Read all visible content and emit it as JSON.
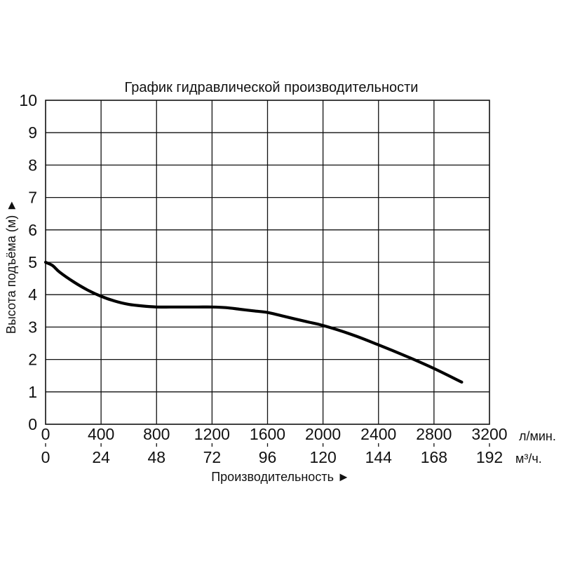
{
  "chart_data": {
    "type": "line",
    "title": "График гидравлической производительности",
    "ylabel": "Высота подъёма (м) ►",
    "xlabel": "Производительность ►",
    "x_unit": "л/мин.",
    "x2_unit": "м³/ч.",
    "xlim": [
      0,
      3200
    ],
    "ylim": [
      0,
      10
    ],
    "grid": true,
    "x_ticks": [
      "0",
      "400",
      "800",
      "1200",
      "1600",
      "2000",
      "2400",
      "2800",
      "3200"
    ],
    "x2_ticks": [
      "0",
      "24",
      "48",
      "72",
      "96",
      "120",
      "144",
      "168",
      "192"
    ],
    "y_ticks": [
      "0",
      "1",
      "2",
      "3",
      "4",
      "5",
      "6",
      "7",
      "8",
      "9",
      "10"
    ],
    "series": [
      {
        "x": [
          0,
          50,
          100,
          200,
          300,
          400,
          500,
          600,
          700,
          800,
          900,
          1000,
          1100,
          1200,
          1300,
          1400,
          1500,
          1600,
          1700,
          1800,
          1900,
          2000,
          2200,
          2400,
          2600,
          2800,
          3000
        ],
        "values": [
          5.0,
          4.9,
          4.7,
          4.4,
          4.15,
          3.95,
          3.8,
          3.7,
          3.65,
          3.62,
          3.62,
          3.62,
          3.62,
          3.62,
          3.6,
          3.55,
          3.5,
          3.45,
          3.35,
          3.25,
          3.15,
          3.05,
          2.78,
          2.45,
          2.1,
          1.72,
          1.3
        ]
      }
    ]
  }
}
